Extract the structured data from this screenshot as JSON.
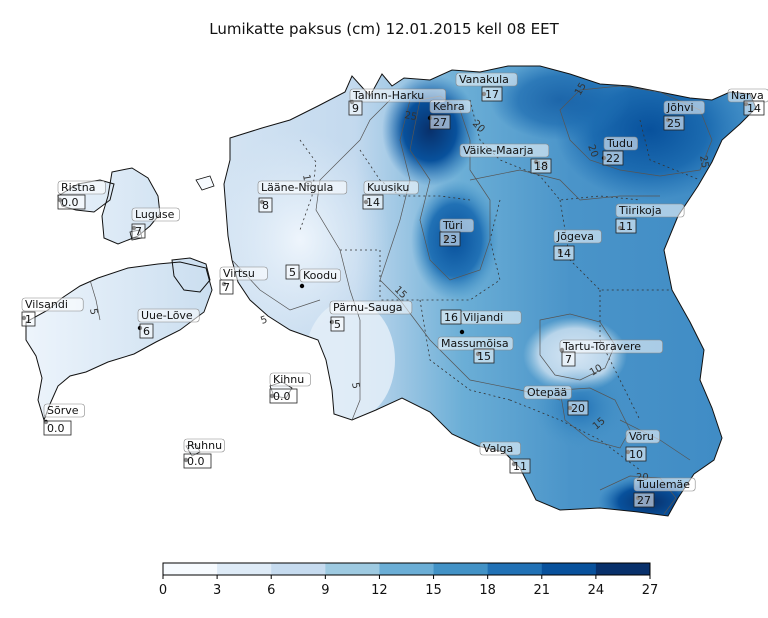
{
  "title": "Lumikatte paksus (cm) 12.01.2015 kell 08 EET",
  "colorbar": {
    "min": 0,
    "max": 27,
    "ticks": [
      "0",
      "3",
      "6",
      "9",
      "12",
      "15",
      "18",
      "21",
      "24",
      "27"
    ],
    "colors": [
      "#f7fbff",
      "#deebf7",
      "#c6dbef",
      "#9ecae1",
      "#6baed6",
      "#4292c6",
      "#2171b5",
      "#08519c",
      "#08306b"
    ]
  },
  "contour_labels": [
    "5",
    "5",
    "5",
    "10",
    "10",
    "15",
    "15",
    "15",
    "15",
    "20",
    "20",
    "20",
    "25",
    "25"
  ],
  "stations": [
    {
      "name": "Tallinn-Harku",
      "value": "9"
    },
    {
      "name": "Vanakula",
      "value": "17"
    },
    {
      "name": "Kehra",
      "value": "27"
    },
    {
      "name": "Narva",
      "value": "14"
    },
    {
      "name": "Jõhvi",
      "value": "25"
    },
    {
      "name": "Väike-Maarja",
      "value": "18"
    },
    {
      "name": "Tudu",
      "value": "22"
    },
    {
      "name": "Ristna",
      "value": "0.0"
    },
    {
      "name": "Lääne-Nigula",
      "value": "8"
    },
    {
      "name": "Kuusiku",
      "value": "14"
    },
    {
      "name": "Luguse",
      "value": "7"
    },
    {
      "name": "Türi",
      "value": "23"
    },
    {
      "name": "Tiirikoja",
      "value": "11"
    },
    {
      "name": "Jõgeva",
      "value": "14"
    },
    {
      "name": "Virtsu",
      "value": "7"
    },
    {
      "name": "Koodu",
      "value": "5"
    },
    {
      "name": "Vilsandi",
      "value": "1"
    },
    {
      "name": "Uue-Lõve",
      "value": "6"
    },
    {
      "name": "Pärnu-Sauga",
      "value": "5"
    },
    {
      "name": "Viljandi",
      "value": "16"
    },
    {
      "name": "Massumõisa",
      "value": "15"
    },
    {
      "name": "Tartu-Tõravere",
      "value": "7"
    },
    {
      "name": "Kihnu",
      "value": "0.0"
    },
    {
      "name": "Otepää",
      "value": "20"
    },
    {
      "name": "Sõrve",
      "value": "0.0"
    },
    {
      "name": "Võru",
      "value": "10"
    },
    {
      "name": "Ruhnu",
      "value": "0.0"
    },
    {
      "name": "Valga",
      "value": "11"
    },
    {
      "name": "Tuulemäe",
      "value": "27"
    }
  ]
}
